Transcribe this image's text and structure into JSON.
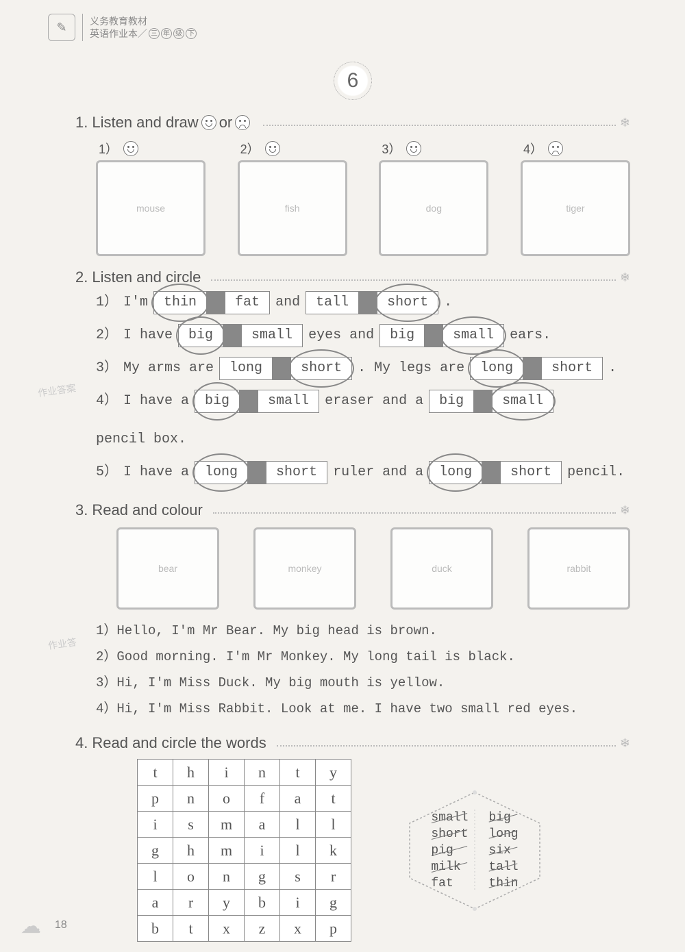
{
  "header": {
    "line1": "义务教育教材",
    "line2_prefix": "英语作业本／",
    "grade_chars": [
      "三",
      "年",
      "级",
      "下"
    ]
  },
  "lesson_number": "6",
  "section1": {
    "title_num": "1.",
    "title_text": "Listen and draw",
    "title_suffix": " or ",
    "items": [
      {
        "num": "1）",
        "face": "happy",
        "alt": "mouse"
      },
      {
        "num": "2）",
        "face": "happy",
        "alt": "fish"
      },
      {
        "num": "3）",
        "face": "happy",
        "alt": "dog"
      },
      {
        "num": "4）",
        "face": "sad",
        "alt": "tiger"
      }
    ]
  },
  "section2": {
    "title_num": "2.",
    "title_text": "Listen and circle",
    "lines": [
      {
        "num": "1）",
        "parts": [
          {
            "text": "I'm",
            "type": "text"
          },
          {
            "type": "box2",
            "a": "thin",
            "b": "fat",
            "circled": "a"
          },
          {
            "text": "and",
            "type": "text"
          },
          {
            "type": "box2",
            "a": "tall",
            "b": "short",
            "circled": "b"
          },
          {
            "text": ".",
            "type": "text"
          }
        ]
      },
      {
        "num": "2）",
        "parts": [
          {
            "text": "I have",
            "type": "text"
          },
          {
            "type": "box2",
            "a": "big",
            "b": "small",
            "circled": "a"
          },
          {
            "text": "eyes and",
            "type": "text"
          },
          {
            "type": "box2",
            "a": "big",
            "b": "small",
            "circled": "b"
          },
          {
            "text": "ears.",
            "type": "text"
          }
        ]
      },
      {
        "num": "3）",
        "parts": [
          {
            "text": "My arms are",
            "type": "text"
          },
          {
            "type": "box2",
            "a": "long",
            "b": "short",
            "circled": "b"
          },
          {
            "text": ". My legs are",
            "type": "text"
          },
          {
            "type": "box2",
            "a": "long",
            "b": "short",
            "circled": "a"
          },
          {
            "text": ".",
            "type": "text"
          }
        ]
      },
      {
        "num": "4）",
        "parts": [
          {
            "text": "I have a",
            "type": "text"
          },
          {
            "type": "box2",
            "a": "big",
            "b": "small",
            "circled": "a"
          },
          {
            "text": "eraser and a",
            "type": "text"
          },
          {
            "type": "box2",
            "a": "big",
            "b": "small",
            "circled": "b"
          },
          {
            "text": "pencil box.",
            "type": "text"
          }
        ]
      },
      {
        "num": "5）",
        "parts": [
          {
            "text": "I have a",
            "type": "text"
          },
          {
            "type": "box2",
            "a": "long",
            "b": "short",
            "circled": "a"
          },
          {
            "text": "ruler and a",
            "type": "text"
          },
          {
            "type": "box2",
            "a": "long",
            "b": "short",
            "circled": "a"
          },
          {
            "text": "pencil.",
            "type": "text"
          }
        ]
      }
    ]
  },
  "section3": {
    "title_num": "3.",
    "title_text": "Read and colour",
    "images": [
      "bear",
      "monkey",
      "duck",
      "rabbit"
    ],
    "sentences": [
      "1）Hello, I'm Mr Bear. My big head is brown.",
      "2）Good morning. I'm Mr Monkey. My long tail is black.",
      "3）Hi, I'm Miss Duck. My big mouth is yellow.",
      "4）Hi, I'm Miss Rabbit. Look at me. I have two small red eyes."
    ]
  },
  "section4": {
    "title_num": "4.",
    "title_text": "Read and circle the words",
    "grid": [
      [
        "t",
        "h",
        "i",
        "n",
        "t",
        "y"
      ],
      [
        "p",
        "n",
        "o",
        "f",
        "a",
        "t"
      ],
      [
        "i",
        "s",
        "m",
        "a",
        "l",
        "l"
      ],
      [
        "g",
        "h",
        "m",
        "i",
        "l",
        "k"
      ],
      [
        "l",
        "o",
        "n",
        "g",
        "s",
        "r"
      ],
      [
        "a",
        "r",
        "y",
        "b",
        "i",
        "g"
      ],
      [
        "b",
        "t",
        "x",
        "z",
        "x",
        "p"
      ]
    ],
    "wordbank_left": [
      "small",
      "short",
      "pig",
      "milk",
      "fat"
    ],
    "wordbank_right": [
      "big",
      "long",
      "six",
      "tall",
      "thin"
    ],
    "slashed": [
      "small",
      "short",
      "pig",
      "milk",
      "big",
      "long",
      "six",
      "tall",
      "thin"
    ]
  },
  "page_number": "18",
  "watermarks": [
    "作业答案",
    "作业答"
  ],
  "colors": {
    "bg": "#f4f2ee",
    "text": "#555",
    "border": "#888",
    "light": "#bbb"
  }
}
